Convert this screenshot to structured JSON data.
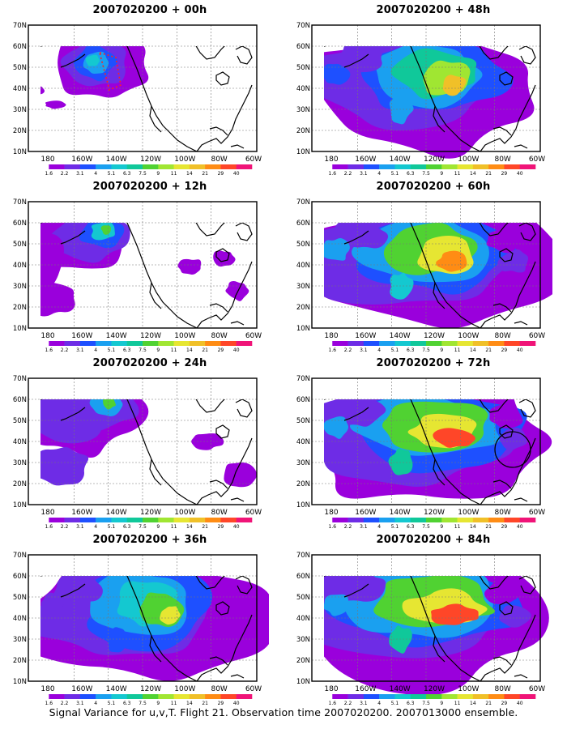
{
  "colorbar": {
    "labels": [
      "1.6",
      "2.2",
      "3.1",
      "4",
      "5.1",
      "6.3",
      "7.5",
      "9",
      "11",
      "14",
      "21",
      "29",
      "40"
    ],
    "colors": [
      "#ffffff",
      "#9a00dc",
      "#6e2ce6",
      "#1e50ff",
      "#1aa0f0",
      "#14c8d0",
      "#10c89a",
      "#50d232",
      "#a0e632",
      "#e6e632",
      "#f0c028",
      "#ff8c14",
      "#ff4628",
      "#f01478"
    ]
  },
  "axes": {
    "lat_labels": [
      "70N",
      "60N",
      "50N",
      "40N",
      "30N",
      "20N",
      "10N"
    ],
    "lon_labels": [
      "180",
      "160W",
      "140W",
      "120W",
      "100W",
      "80W",
      "60W"
    ]
  },
  "panels": [
    {
      "title": "2007020200 + 00h",
      "level": 0
    },
    {
      "title": "2007020200 + 48h",
      "level": 4
    },
    {
      "title": "2007020200 + 12h",
      "level": 1
    },
    {
      "title": "2007020200 + 60h",
      "level": 5
    },
    {
      "title": "2007020200 + 24h",
      "level": 2
    },
    {
      "title": "2007020200 + 72h",
      "level": 6
    },
    {
      "title": "2007020200 + 36h",
      "level": 3
    },
    {
      "title": "2007020200 + 84h",
      "level": 7
    }
  ],
  "caption": "Signal Variance for u,v,T. Flight 21. Observation time 2007020200. 2007013000 ensemble."
}
